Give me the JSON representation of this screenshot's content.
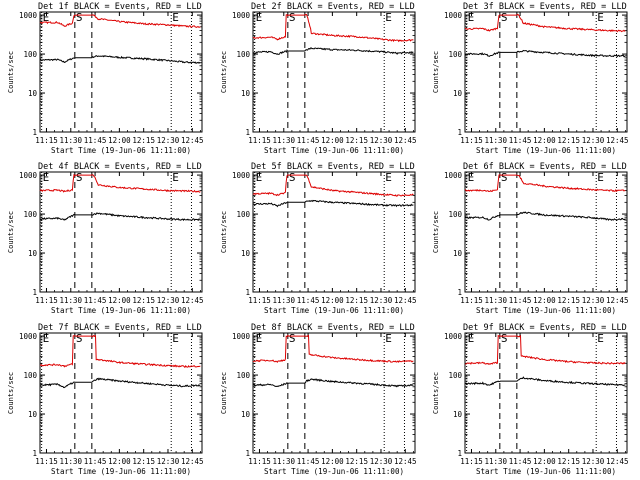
{
  "colors": {
    "events": "#000000",
    "lld": "#dd0000",
    "axes": "#000000",
    "background": "#ffffff"
  },
  "common": {
    "ylabel": "Counts/sec",
    "xlabel": "Start Time (19-Jun-06 11:11:00)",
    "title_suffix": "BLACK = Events, RED = LLD",
    "yticks": [
      {
        "value": 1,
        "label": "1"
      },
      {
        "value": 10,
        "label": "10"
      },
      {
        "value": 100,
        "label": "100"
      },
      {
        "value": 1000,
        "label": "1000"
      }
    ],
    "xticks": [
      {
        "minute": 15,
        "label": "11:15"
      },
      {
        "minute": 30,
        "label": "11:30"
      },
      {
        "minute": 45,
        "label": "11:45"
      },
      {
        "minute": 60,
        "label": "12:00"
      },
      {
        "minute": 75,
        "label": "12:15"
      },
      {
        "minute": 90,
        "label": "12:30"
      },
      {
        "minute": 105,
        "label": "12:45"
      }
    ],
    "markers": [
      {
        "label": "E",
        "minute": 12,
        "style": "dotted"
      },
      {
        "label": "S",
        "minute": 32.5,
        "style": "dashed"
      },
      {
        "label": "",
        "minute": 43,
        "style": "dashed"
      },
      {
        "label": "E",
        "minute": 92,
        "style": "dotted"
      },
      {
        "label": "",
        "minute": 104.5,
        "style": "dotted"
      }
    ]
  },
  "chart_data": [
    {
      "type": "line",
      "title": "Det 1f",
      "yscale": "log",
      "ylim": [
        1,
        1200
      ],
      "xlim_minutes": [
        11,
        111
      ],
      "x_unit": "minutes after 11:00 on 19-Jun-06",
      "series": [
        {
          "key": "events",
          "x": [
            11,
            22,
            26,
            32,
            33,
            43,
            44,
            47,
            60,
            75,
            90,
            100,
            110
          ],
          "y": [
            70,
            72,
            62,
            80,
            80,
            80,
            85,
            90,
            82,
            76,
            68,
            62,
            60
          ]
        },
        {
          "key": "lld",
          "x": [
            11,
            22,
            26,
            31,
            32,
            33,
            43,
            44,
            47,
            60,
            75,
            90,
            100,
            110
          ],
          "y": [
            640,
            650,
            520,
            620,
            1000,
            1000,
            1000,
            1000,
            800,
            680,
            600,
            560,
            520,
            500
          ]
        }
      ]
    },
    {
      "type": "line",
      "title": "Det 2f",
      "yscale": "log",
      "ylim": [
        1,
        1200
      ],
      "xlim_minutes": [
        11,
        111
      ],
      "x_unit": "minutes after 11:00 on 19-Jun-06",
      "series": [
        {
          "key": "events",
          "x": [
            11,
            22,
            26,
            32,
            33,
            43,
            44,
            47,
            60,
            75,
            90,
            100,
            110
          ],
          "y": [
            110,
            115,
            100,
            120,
            120,
            120,
            130,
            140,
            130,
            125,
            115,
            105,
            110
          ]
        },
        {
          "key": "lld",
          "x": [
            11,
            22,
            26,
            31,
            32,
            33,
            43,
            44,
            47,
            60,
            75,
            90,
            100,
            110
          ],
          "y": [
            260,
            270,
            240,
            280,
            1000,
            1000,
            1000,
            1000,
            340,
            300,
            280,
            240,
            220,
            230
          ]
        }
      ]
    },
    {
      "type": "line",
      "title": "Det 3f",
      "yscale": "log",
      "ylim": [
        1,
        1200
      ],
      "xlim_minutes": [
        11,
        111
      ],
      "x_unit": "minutes after 11:00 on 19-Jun-06",
      "series": [
        {
          "key": "events",
          "x": [
            11,
            22,
            26,
            32,
            33,
            43,
            44,
            47,
            60,
            75,
            90,
            100,
            110
          ],
          "y": [
            100,
            102,
            90,
            110,
            110,
            110,
            115,
            120,
            110,
            100,
            92,
            90,
            90
          ]
        },
        {
          "key": "lld",
          "x": [
            11,
            22,
            26,
            31,
            32,
            33,
            43,
            44,
            47,
            60,
            75,
            90,
            100,
            110
          ],
          "y": [
            440,
            450,
            400,
            460,
            1000,
            1000,
            1000,
            1000,
            620,
            500,
            450,
            420,
            400,
            390
          ]
        }
      ]
    },
    {
      "type": "line",
      "title": "Det 4f",
      "yscale": "log",
      "ylim": [
        1,
        1200
      ],
      "xlim_minutes": [
        11,
        111
      ],
      "x_unit": "minutes after 11:00 on 19-Jun-06",
      "series": [
        {
          "key": "events",
          "x": [
            11,
            22,
            26,
            32,
            33,
            43,
            44,
            47,
            60,
            75,
            90,
            100,
            110
          ],
          "y": [
            75,
            78,
            70,
            95,
            95,
            95,
            100,
            105,
            90,
            82,
            75,
            72,
            72
          ]
        },
        {
          "key": "lld",
          "x": [
            11,
            22,
            26,
            31,
            32,
            33,
            43,
            44,
            47,
            60,
            75,
            90,
            100,
            110
          ],
          "y": [
            400,
            410,
            380,
            420,
            1000,
            1000,
            1000,
            1000,
            560,
            480,
            440,
            400,
            390,
            380
          ]
        }
      ]
    },
    {
      "type": "line",
      "title": "Det 5f",
      "yscale": "log",
      "ylim": [
        1,
        1200
      ],
      "xlim_minutes": [
        11,
        111
      ],
      "x_unit": "minutes after 11:00 on 19-Jun-06",
      "series": [
        {
          "key": "events",
          "x": [
            11,
            22,
            26,
            32,
            33,
            43,
            44,
            47,
            60,
            75,
            90,
            100,
            110
          ],
          "y": [
            180,
            185,
            160,
            200,
            200,
            200,
            210,
            220,
            200,
            185,
            170,
            165,
            170
          ]
        },
        {
          "key": "lld",
          "x": [
            11,
            22,
            26,
            31,
            32,
            33,
            43,
            44,
            47,
            60,
            75,
            90,
            100,
            110
          ],
          "y": [
            330,
            340,
            310,
            350,
            1000,
            1000,
            1000,
            1000,
            500,
            400,
            360,
            320,
            300,
            310
          ]
        }
      ]
    },
    {
      "type": "line",
      "title": "Det 6f",
      "yscale": "log",
      "ylim": [
        1,
        1200
      ],
      "xlim_minutes": [
        11,
        111
      ],
      "x_unit": "minutes after 11:00 on 19-Jun-06",
      "series": [
        {
          "key": "events",
          "x": [
            11,
            22,
            26,
            32,
            33,
            43,
            44,
            47,
            60,
            75,
            90,
            100,
            110
          ],
          "y": [
            80,
            82,
            72,
            95,
            95,
            95,
            100,
            110,
            95,
            88,
            80,
            72,
            75
          ]
        },
        {
          "key": "lld",
          "x": [
            11,
            22,
            26,
            31,
            32,
            33,
            43,
            44,
            47,
            60,
            75,
            90,
            100,
            110
          ],
          "y": [
            400,
            410,
            380,
            420,
            1000,
            1000,
            1000,
            1000,
            620,
            520,
            460,
            420,
            400,
            400
          ]
        }
      ]
    },
    {
      "type": "line",
      "title": "Det 7f",
      "yscale": "log",
      "ylim": [
        1,
        1200
      ],
      "xlim_minutes": [
        11,
        111
      ],
      "x_unit": "minutes after 11:00 on 19-Jun-06",
      "series": [
        {
          "key": "events",
          "x": [
            11,
            22,
            26,
            32,
            33,
            43,
            44,
            47,
            60,
            75,
            90,
            100,
            110
          ],
          "y": [
            55,
            58,
            48,
            65,
            65,
            65,
            70,
            80,
            70,
            62,
            55,
            52,
            55
          ]
        },
        {
          "key": "lld",
          "x": [
            11,
            22,
            26,
            31,
            32,
            33,
            43,
            44,
            47,
            60,
            75,
            90,
            100,
            110
          ],
          "y": [
            180,
            185,
            170,
            190,
            1000,
            1000,
            1000,
            1000,
            250,
            210,
            190,
            175,
            165,
            170
          ]
        }
      ]
    },
    {
      "type": "line",
      "title": "Det 8f",
      "yscale": "log",
      "ylim": [
        1,
        1200
      ],
      "xlim_minutes": [
        11,
        111
      ],
      "x_unit": "minutes after 11:00 on 19-Jun-06",
      "series": [
        {
          "key": "events",
          "x": [
            11,
            22,
            26,
            32,
            33,
            43,
            44,
            47,
            60,
            75,
            90,
            100,
            110
          ],
          "y": [
            55,
            57,
            50,
            62,
            62,
            62,
            70,
            78,
            68,
            62,
            56,
            52,
            55
          ]
        },
        {
          "key": "lld",
          "x": [
            11,
            22,
            26,
            31,
            32,
            33,
            43,
            44,
            47,
            60,
            75,
            90,
            100,
            110
          ],
          "y": [
            230,
            240,
            220,
            250,
            1000,
            1000,
            1000,
            1000,
            330,
            280,
            250,
            230,
            220,
            230
          ]
        }
      ]
    },
    {
      "type": "line",
      "title": "Det 9f",
      "yscale": "log",
      "ylim": [
        1,
        1200
      ],
      "xlim_minutes": [
        11,
        111
      ],
      "x_unit": "minutes after 11:00 on 19-Jun-06",
      "series": [
        {
          "key": "events",
          "x": [
            11,
            22,
            26,
            32,
            33,
            43,
            44,
            47,
            60,
            75,
            90,
            100,
            110
          ],
          "y": [
            60,
            62,
            55,
            70,
            70,
            70,
            75,
            85,
            72,
            65,
            60,
            57,
            56
          ]
        },
        {
          "key": "lld",
          "x": [
            11,
            22,
            26,
            31,
            32,
            33,
            43,
            44,
            47,
            60,
            75,
            90,
            100,
            110
          ],
          "y": [
            200,
            205,
            190,
            210,
            1000,
            1000,
            1000,
            1000,
            300,
            250,
            220,
            205,
            200,
            200
          ]
        }
      ]
    }
  ]
}
